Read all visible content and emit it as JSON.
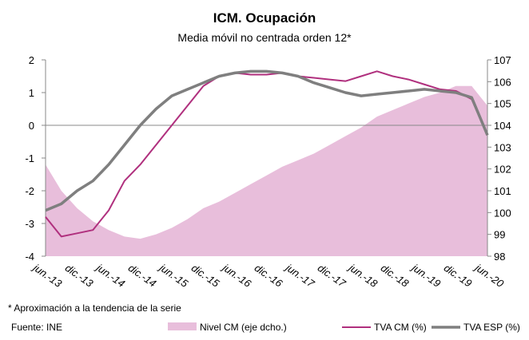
{
  "chart_data": {
    "type": "combo",
    "title": "ICM. Ocupación",
    "subtitle": "Media móvil no centrada orden 12*",
    "footnote": "* Aproximación a la tendencia de la serie",
    "source": "Fuente: INE",
    "categories": [
      "jun.-13",
      null,
      "dic.-13",
      null,
      "jun.-14",
      null,
      "dic.-14",
      null,
      "jun.-15",
      null,
      "dic.-15",
      null,
      "jun.-16",
      null,
      "dic.-16",
      null,
      "jun.-17",
      null,
      "dic.-17",
      null,
      "jun.-18",
      null,
      "dic.-18",
      null,
      "jun.-19",
      null,
      "dic.-19",
      null,
      "jun.-20"
    ],
    "series": [
      {
        "name": "Nivel CM (eje dcho.)",
        "kind": "area",
        "axis": "y2",
        "color": "#e8bedb",
        "values": [
          102.2,
          101.0,
          100.2,
          99.6,
          99.2,
          98.9,
          98.8,
          99.0,
          99.3,
          99.7,
          100.2,
          100.5,
          100.9,
          101.3,
          101.7,
          102.1,
          102.4,
          102.7,
          103.1,
          103.5,
          103.9,
          104.4,
          104.7,
          105.0,
          105.3,
          105.5,
          105.8,
          105.8,
          104.9
        ]
      },
      {
        "name": "TVA CM (%)",
        "kind": "line",
        "color": "#b0307e",
        "values": [
          -2.8,
          -3.4,
          -3.3,
          -3.2,
          -2.6,
          -1.7,
          -1.2,
          -0.6,
          0.0,
          0.6,
          1.2,
          1.5,
          1.6,
          1.55,
          1.55,
          1.6,
          1.5,
          1.45,
          1.4,
          1.35,
          1.5,
          1.65,
          1.5,
          1.4,
          1.25,
          1.1,
          1.05,
          0.8,
          -0.3
        ]
      },
      {
        "name": "TVA ESP (%)",
        "kind": "line",
        "color": "#7f7f7f",
        "values": [
          -2.6,
          -2.4,
          -2.0,
          -1.7,
          -1.2,
          -0.6,
          0.0,
          0.5,
          0.9,
          1.1,
          1.3,
          1.5,
          1.6,
          1.65,
          1.65,
          1.6,
          1.5,
          1.3,
          1.15,
          1.0,
          0.9,
          0.95,
          1.0,
          1.05,
          1.1,
          1.05,
          1.0,
          0.85,
          -0.3
        ]
      }
    ],
    "ylim": [
      -4,
      2
    ],
    "yticks": [
      -4,
      -3,
      -2,
      -1,
      0,
      1,
      2
    ],
    "y2lim": [
      98,
      107
    ],
    "y2ticks": [
      98,
      99,
      100,
      101,
      102,
      103,
      104,
      105,
      106,
      107
    ]
  }
}
